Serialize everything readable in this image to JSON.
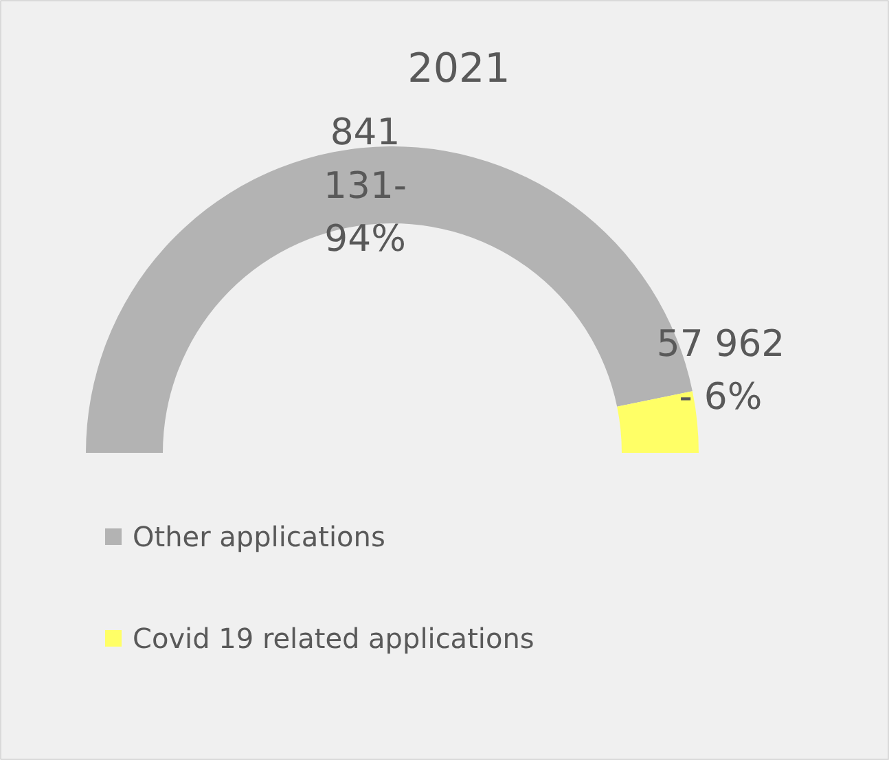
{
  "chart_data": {
    "type": "donut",
    "title": "2021",
    "categories": [
      "Other applications",
      "Covid 19 related applications"
    ],
    "values": [
      841131,
      57962
    ],
    "colors": [
      "#b3b3b3",
      "#ffff66"
    ],
    "value_labels": [
      "841 131- 94%",
      "57 962 - 6%"
    ],
    "legend": "bottom"
  }
}
